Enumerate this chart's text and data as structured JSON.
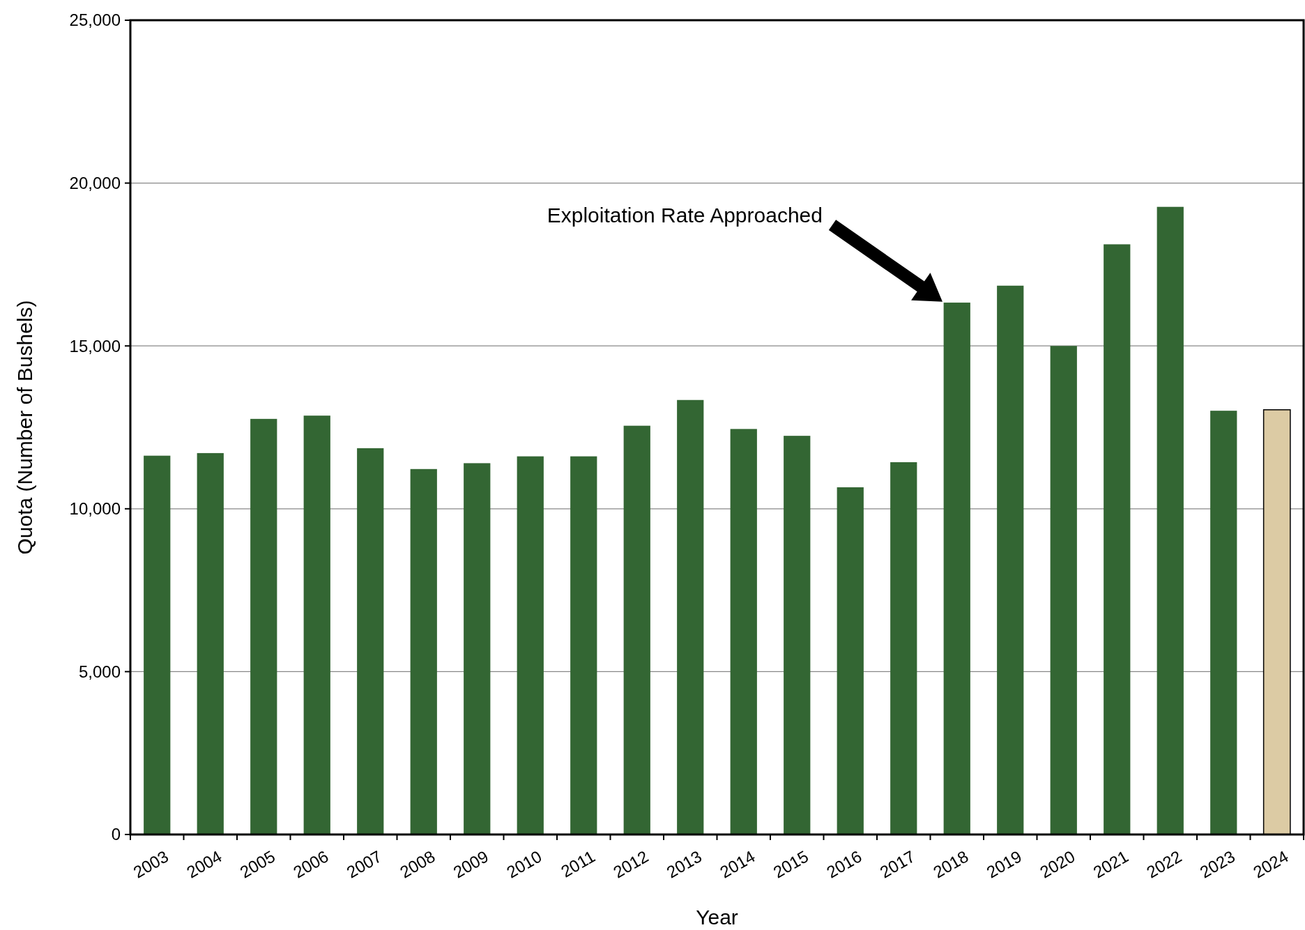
{
  "chart_data": {
    "type": "bar",
    "xlabel": "Year",
    "ylabel": "Quota (Number of Bushels)",
    "categories": [
      "2003",
      "2004",
      "2005",
      "2006",
      "2007",
      "2008",
      "2009",
      "2010",
      "2011",
      "2012",
      "2013",
      "2014",
      "2015",
      "2016",
      "2017",
      "2018",
      "2019",
      "2020",
      "2021",
      "2022",
      "2023",
      "2024"
    ],
    "values": [
      11630,
      11710,
      12760,
      12860,
      11860,
      11220,
      11400,
      11610,
      11610,
      12550,
      13340,
      12450,
      12240,
      10660,
      11430,
      16330,
      16850,
      15000,
      18120,
      19270,
      13010,
      13040
    ],
    "colors": [
      "#336633",
      "#336633",
      "#336633",
      "#336633",
      "#336633",
      "#336633",
      "#336633",
      "#336633",
      "#336633",
      "#336633",
      "#336633",
      "#336633",
      "#336633",
      "#336633",
      "#336633",
      "#336633",
      "#336633",
      "#336633",
      "#336633",
      "#336633",
      "#336633",
      "#dccba4"
    ],
    "ylim": [
      0,
      25000
    ],
    "yticks": [
      {
        "value": 0,
        "label": "0"
      },
      {
        "value": 5000,
        "label": "5,000"
      },
      {
        "value": 10000,
        "label": "10,000"
      },
      {
        "value": 15000,
        "label": "15,000"
      },
      {
        "value": 20000,
        "label": "20,000"
      },
      {
        "value": 25000,
        "label": "25,000"
      }
    ],
    "grid": "y",
    "annotations": [
      "Exploitation Rate Approached"
    ]
  }
}
